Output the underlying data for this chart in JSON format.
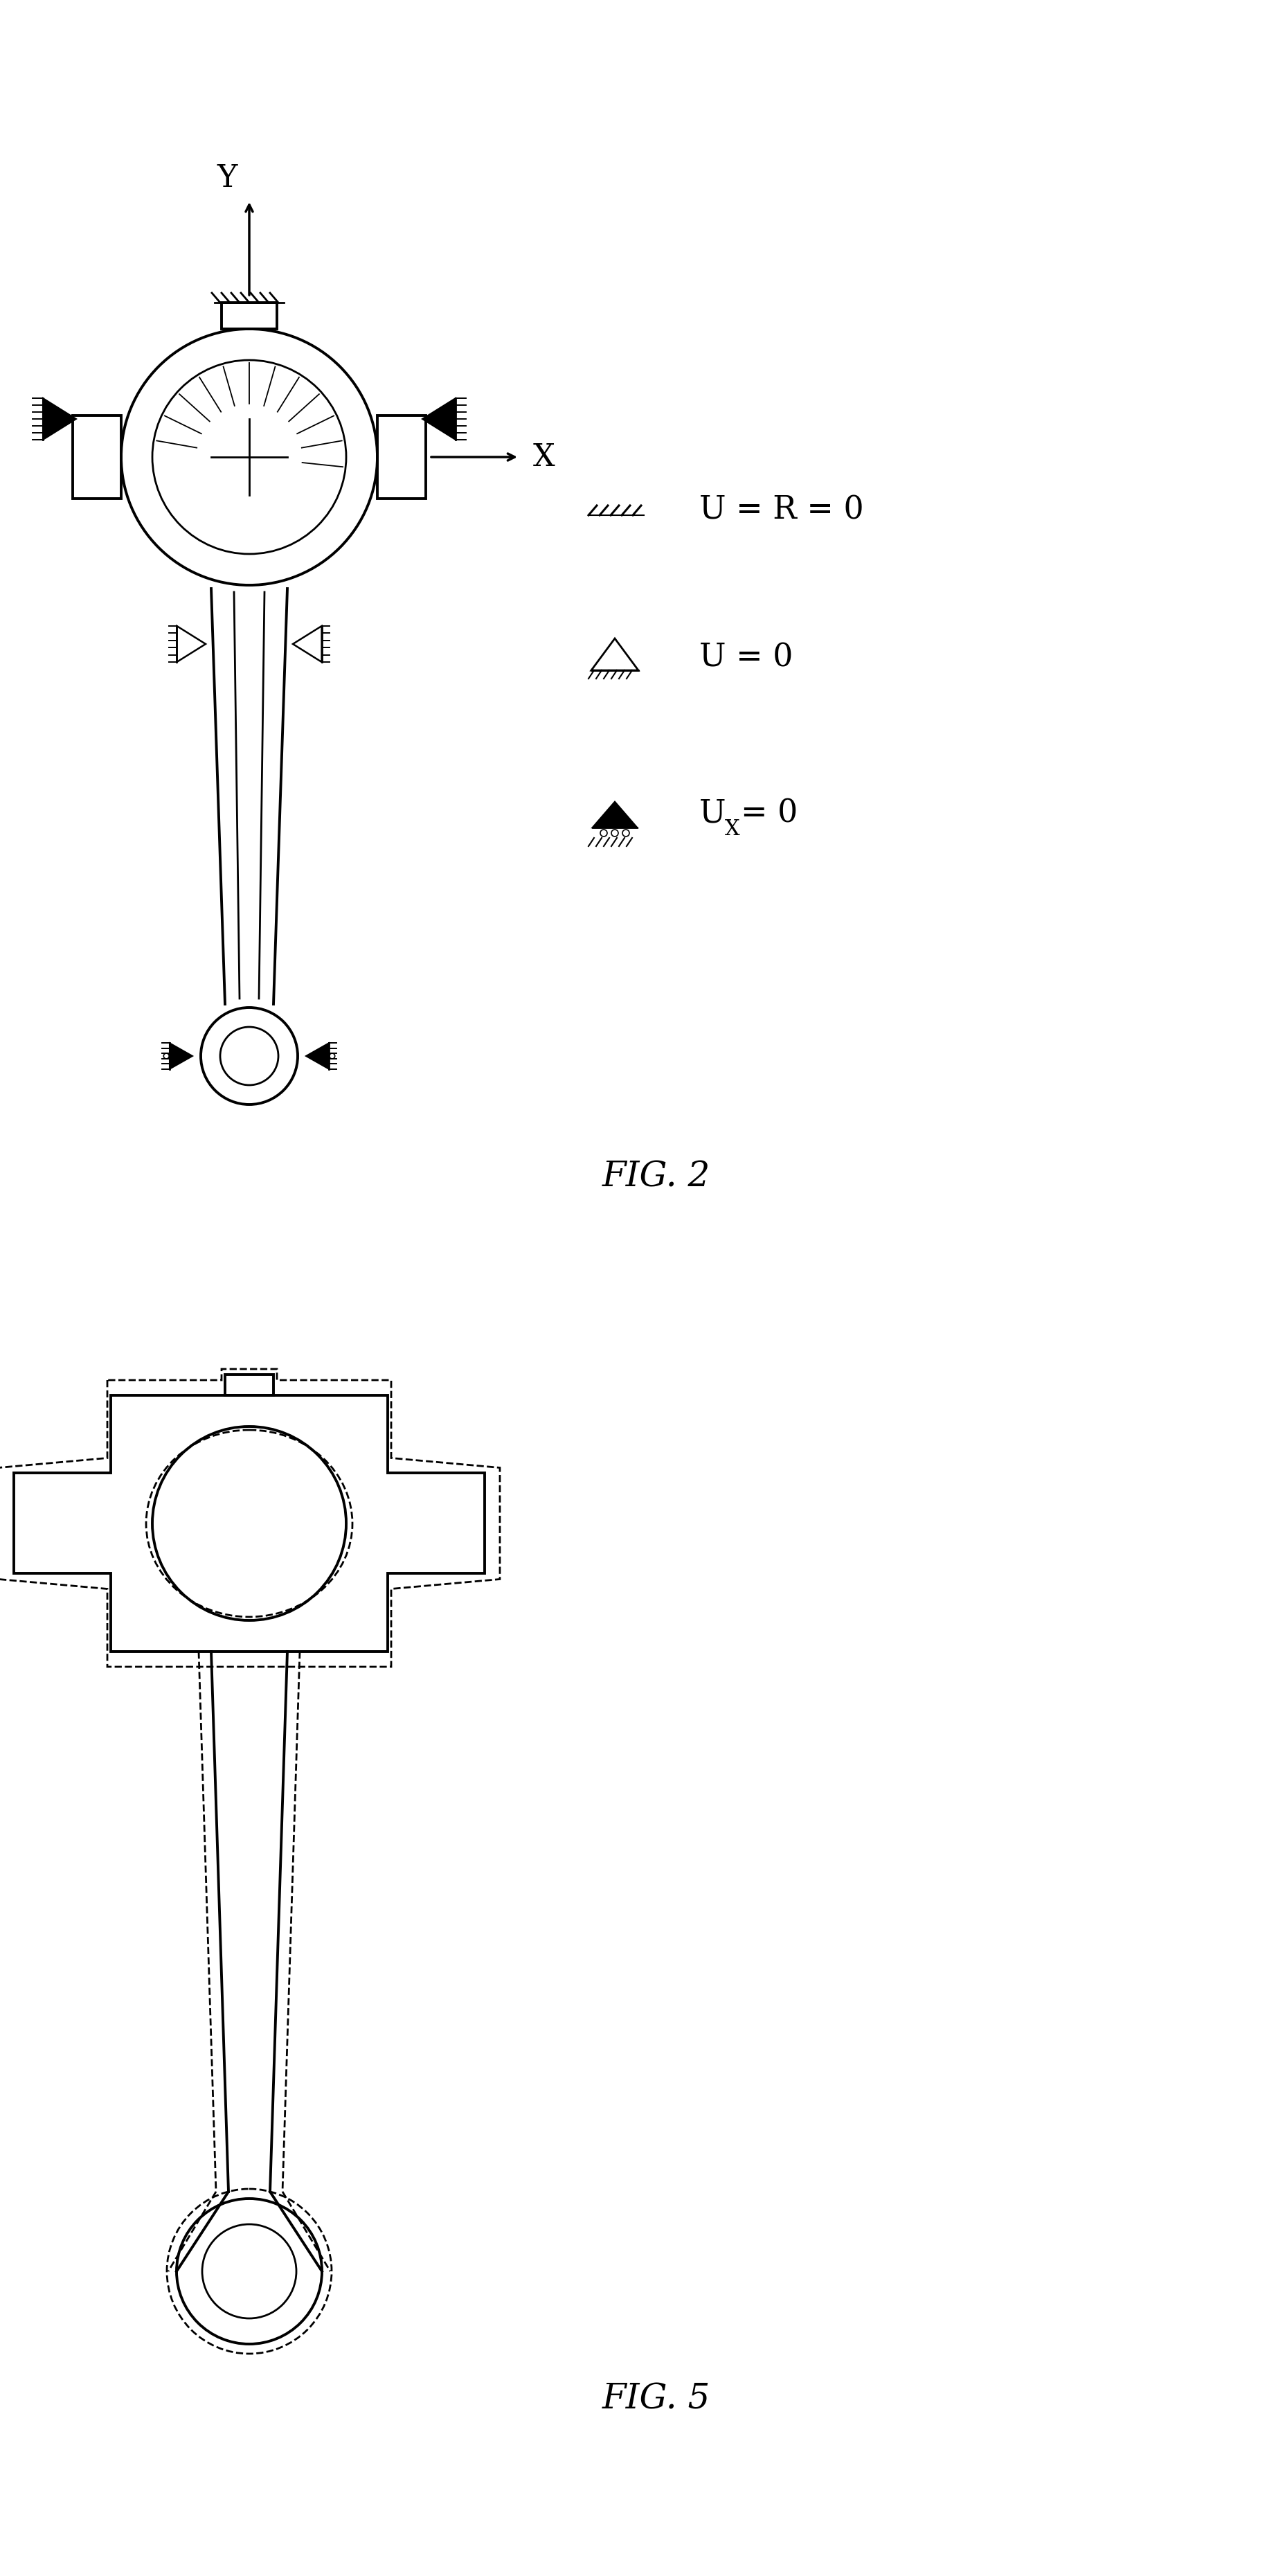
{
  "fig_width": 18.31,
  "fig_height": 37.2,
  "bg_color": "#ffffff",
  "line_color": "#000000",
  "lw_main": 2.8,
  "lw_med": 2.0,
  "lw_thin": 1.4,
  "fig2_label": "FIG. 2",
  "fig5_label": "FIG. 5",
  "legend_label1": "U = R = 0",
  "legend_label2": "U = 0",
  "legend_label3": "U",
  "legend_label3b": "X",
  "legend_label3c": "= 0",
  "axis_x": "X",
  "axis_y": "Y"
}
